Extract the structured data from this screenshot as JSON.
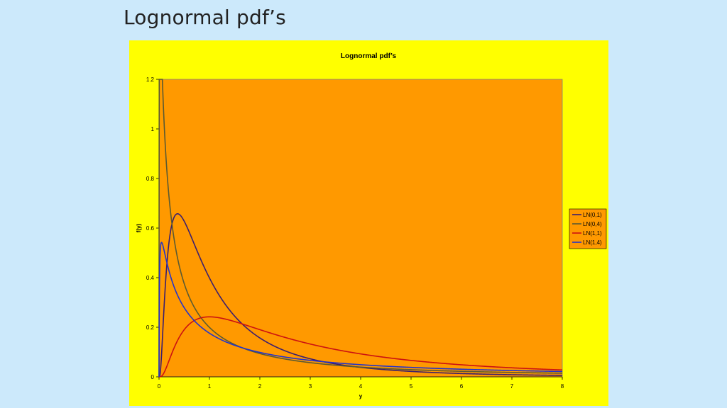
{
  "slide": {
    "title": "Lognormal pdf’s"
  },
  "colors": {
    "page_bg": "#cce9fb",
    "chart_area": "#ffff00",
    "plot_area": "#ff9900"
  },
  "chart_data": {
    "type": "line",
    "title": "Lognormal pdf’s",
    "xlabel": "y",
    "ylabel": "f(y)",
    "xlim": [
      0,
      8
    ],
    "ylim": [
      0,
      1.2
    ],
    "x_ticks": [
      "0",
      "1",
      "2",
      "3",
      "4",
      "5",
      "6",
      "7",
      "8"
    ],
    "y_ticks": [
      "0",
      "0.2",
      "0.4",
      "0.6",
      "0.8",
      "1",
      "1.2"
    ],
    "grid": false,
    "legend_position": "right",
    "series": [
      {
        "name": "LN(0,1)",
        "mu": 0,
        "sigma2": 1,
        "color": "#3b1e6e"
      },
      {
        "name": "LN(0,4)",
        "mu": 0,
        "sigma2": 4,
        "color": "#5a5a32"
      },
      {
        "name": "LN(1,1)",
        "mu": 1,
        "sigma2": 1,
        "color": "#cc1111"
      },
      {
        "name": "LN(1,4)",
        "mu": 1,
        "sigma2": 4,
        "color": "#2233cc"
      }
    ]
  }
}
